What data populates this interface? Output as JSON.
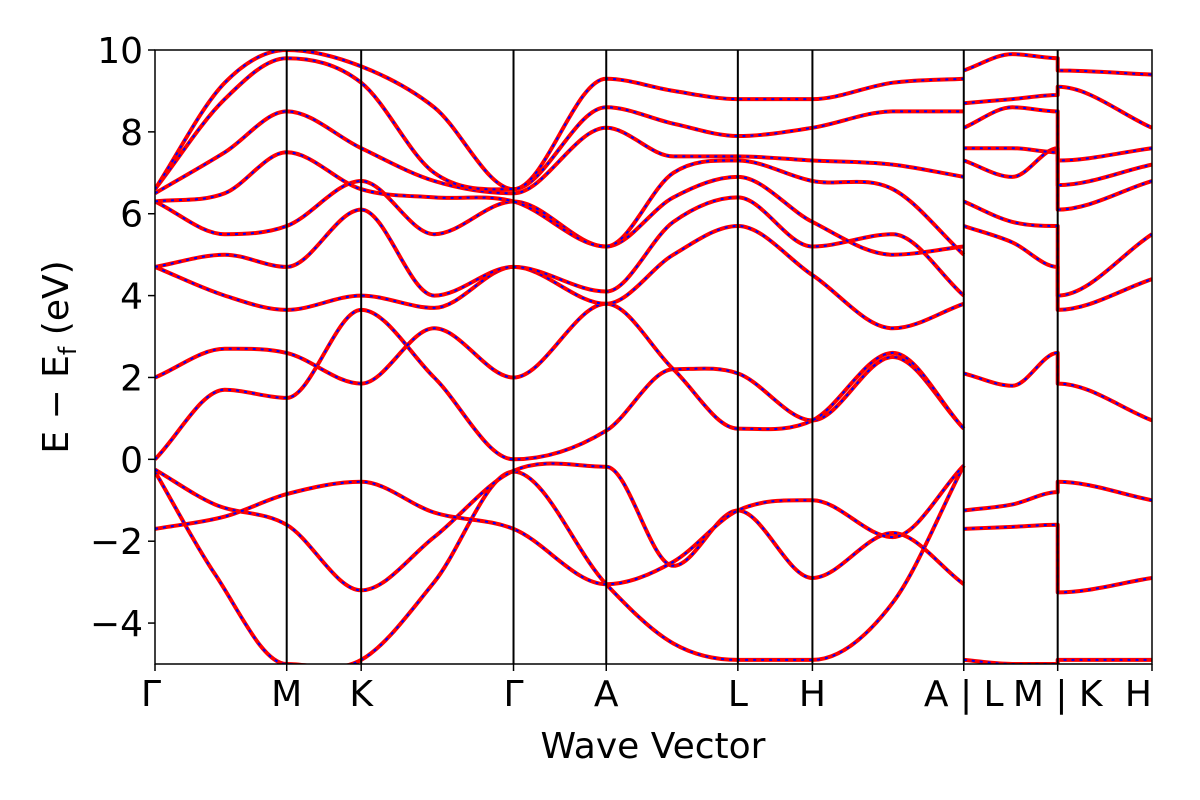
{
  "chart_data": {
    "type": "line",
    "title": "",
    "xlabel": "Wave Vector",
    "ylabel": {
      "main": "E − E",
      "sub": "f",
      "unit": " (eV)"
    },
    "ylim": [
      -5,
      10
    ],
    "yticks": [
      -4,
      -2,
      0,
      2,
      4,
      6,
      8,
      10
    ],
    "ytick_labels": [
      "−4",
      "−2",
      "0",
      "2",
      "4",
      "6",
      "8",
      "10"
    ],
    "x_range": [
      0,
      1
    ],
    "kpath_labels": [
      "Γ",
      "M",
      "K",
      "Γ",
      "A",
      "L",
      "H",
      "A | L",
      "M | K",
      "H"
    ],
    "kpath_positions": [
      0.0,
      0.1321,
      0.2068,
      0.3596,
      0.4526,
      0.5846,
      0.6594,
      0.8112,
      0.9054,
      1.0
    ],
    "grid": false,
    "legend": "none",
    "colors": {
      "line_outer": "#ff0000",
      "line_inner": "#0000ff",
      "axes": "#000000"
    },
    "bands": [
      {
        "name": "band-1",
        "points": [
          [
            0,
            -0.3
          ],
          [
            0.06,
            -2.8
          ],
          [
            0.1321,
            -5.0
          ],
          [
            0.2068,
            -4.9
          ],
          [
            0.28,
            -3.0
          ],
          [
            0.3596,
            -0.3
          ],
          [
            0.4526,
            -3.05
          ],
          [
            0.52,
            -4.5
          ],
          [
            0.5846,
            -4.9
          ],
          [
            0.6594,
            -4.9
          ],
          [
            0.74,
            -3.5
          ],
          [
            0.8112,
            -0.15
          ]
        ]
      },
      {
        "name": "band-2",
        "points": [
          [
            0,
            -0.25
          ],
          [
            0.06,
            -1.1
          ],
          [
            0.1321,
            -1.6
          ],
          [
            0.2068,
            -3.2
          ],
          [
            0.28,
            -1.9
          ],
          [
            0.3596,
            -0.28
          ],
          [
            0.4526,
            -0.18
          ],
          [
            0.52,
            -2.6
          ],
          [
            0.5846,
            -1.25
          ],
          [
            0.6594,
            -2.9
          ],
          [
            0.74,
            -1.8
          ],
          [
            0.8112,
            -3.05
          ]
        ]
      },
      {
        "name": "band-3",
        "points": [
          [
            0,
            -1.7
          ],
          [
            0.07,
            -1.4
          ],
          [
            0.1321,
            -0.85
          ],
          [
            0.2068,
            -0.55
          ],
          [
            0.28,
            -1.3
          ],
          [
            0.3596,
            -1.7
          ],
          [
            0.4526,
            -3.05
          ],
          [
            0.52,
            -2.5
          ],
          [
            0.5846,
            -1.25
          ],
          [
            0.6594,
            -1.0
          ],
          [
            0.74,
            -1.9
          ],
          [
            0.8112,
            -0.15
          ]
        ]
      },
      {
        "name": "band-4",
        "points": [
          [
            0,
            0.0
          ],
          [
            0.07,
            1.7
          ],
          [
            0.1321,
            1.5
          ],
          [
            0.2068,
            3.65
          ],
          [
            0.28,
            2.0
          ],
          [
            0.3596,
            0.0
          ],
          [
            0.4526,
            0.7
          ],
          [
            0.52,
            2.2
          ],
          [
            0.5846,
            2.1
          ],
          [
            0.6594,
            0.95
          ],
          [
            0.74,
            2.5
          ],
          [
            0.8112,
            0.75
          ]
        ]
      },
      {
        "name": "band-5",
        "points": [
          [
            0,
            2.0
          ],
          [
            0.07,
            2.7
          ],
          [
            0.1321,
            2.6
          ],
          [
            0.2068,
            1.85
          ],
          [
            0.28,
            3.2
          ],
          [
            0.3596,
            2.0
          ],
          [
            0.4526,
            3.8
          ],
          [
            0.52,
            2.2
          ],
          [
            0.5846,
            0.75
          ],
          [
            0.6594,
            0.95
          ],
          [
            0.74,
            2.6
          ],
          [
            0.8112,
            0.75
          ]
        ]
      },
      {
        "name": "band-6",
        "points": [
          [
            0,
            4.7
          ],
          [
            0.07,
            4.0
          ],
          [
            0.1321,
            3.65
          ],
          [
            0.2068,
            4.0
          ],
          [
            0.28,
            3.7
          ],
          [
            0.3596,
            4.7
          ],
          [
            0.4526,
            3.8
          ],
          [
            0.52,
            5.0
          ],
          [
            0.5846,
            5.7
          ],
          [
            0.6594,
            4.5
          ],
          [
            0.74,
            3.2
          ],
          [
            0.8112,
            3.8
          ]
        ]
      },
      {
        "name": "band-7",
        "points": [
          [
            0,
            4.7
          ],
          [
            0.07,
            5.0
          ],
          [
            0.1321,
            4.7
          ],
          [
            0.2068,
            6.1
          ],
          [
            0.28,
            4.0
          ],
          [
            0.3596,
            4.7
          ],
          [
            0.4526,
            4.1
          ],
          [
            0.52,
            5.8
          ],
          [
            0.5846,
            6.4
          ],
          [
            0.6594,
            5.2
          ],
          [
            0.74,
            5.5
          ],
          [
            0.8112,
            4.0
          ]
        ]
      },
      {
        "name": "band-8",
        "points": [
          [
            0,
            6.3
          ],
          [
            0.07,
            5.5
          ],
          [
            0.1321,
            5.7
          ],
          [
            0.2068,
            6.8
          ],
          [
            0.28,
            5.5
          ],
          [
            0.3596,
            6.3
          ],
          [
            0.4526,
            5.2
          ],
          [
            0.52,
            6.4
          ],
          [
            0.5846,
            6.9
          ],
          [
            0.6594,
            5.8
          ],
          [
            0.74,
            5.0
          ],
          [
            0.8112,
            5.2
          ]
        ]
      },
      {
        "name": "band-9",
        "points": [
          [
            0,
            6.3
          ],
          [
            0.07,
            6.5
          ],
          [
            0.1321,
            7.5
          ],
          [
            0.2068,
            6.6
          ],
          [
            0.28,
            6.4
          ],
          [
            0.3596,
            6.3
          ],
          [
            0.4526,
            5.2
          ],
          [
            0.52,
            7.0
          ],
          [
            0.5846,
            7.3
          ],
          [
            0.6594,
            6.8
          ],
          [
            0.74,
            6.6
          ],
          [
            0.8112,
            5.0
          ]
        ]
      },
      {
        "name": "band-10",
        "points": [
          [
            0,
            6.5
          ],
          [
            0.07,
            7.5
          ],
          [
            0.1321,
            8.5
          ],
          [
            0.2068,
            7.6
          ],
          [
            0.28,
            6.8
          ],
          [
            0.3596,
            6.5
          ],
          [
            0.4526,
            8.1
          ],
          [
            0.52,
            7.4
          ],
          [
            0.5846,
            7.4
          ],
          [
            0.6594,
            7.3
          ],
          [
            0.74,
            7.2
          ],
          [
            0.8112,
            6.9
          ]
        ]
      },
      {
        "name": "band-11",
        "points": [
          [
            0,
            6.6
          ],
          [
            0.07,
            8.8
          ],
          [
            0.1321,
            9.8
          ],
          [
            0.2068,
            9.2
          ],
          [
            0.28,
            7.0
          ],
          [
            0.3596,
            6.6
          ],
          [
            0.4526,
            8.6
          ],
          [
            0.52,
            8.2
          ],
          [
            0.5846,
            7.9
          ],
          [
            0.6594,
            8.1
          ],
          [
            0.74,
            8.5
          ],
          [
            0.8112,
            8.5
          ]
        ]
      },
      {
        "name": "band-12",
        "points": [
          [
            0,
            6.6
          ],
          [
            0.07,
            9.2
          ],
          [
            0.1321,
            10.0
          ],
          [
            0.2068,
            9.6
          ],
          [
            0.28,
            8.6
          ],
          [
            0.3596,
            6.6
          ],
          [
            0.4526,
            9.3
          ],
          [
            0.52,
            9.0
          ],
          [
            0.5846,
            8.8
          ],
          [
            0.6594,
            8.8
          ],
          [
            0.74,
            9.2
          ],
          [
            0.8112,
            9.3
          ]
        ]
      },
      {
        "name": "band-13",
        "points": [
          [
            0.8112,
            -4.9
          ],
          [
            0.86,
            -5.0
          ],
          [
            0.9054,
            -5.0
          ],
          [
            0.9054,
            -4.9
          ],
          [
            1.0,
            -4.9
          ]
        ]
      },
      {
        "name": "band-14",
        "points": [
          [
            0.8112,
            -1.7
          ],
          [
            0.86,
            -1.65
          ],
          [
            0.9054,
            -1.6
          ],
          [
            0.9054,
            -3.25
          ],
          [
            1.0,
            -2.9
          ]
        ]
      },
      {
        "name": "band-15",
        "points": [
          [
            0.8112,
            -1.25
          ],
          [
            0.86,
            -1.1
          ],
          [
            0.9054,
            -0.8
          ],
          [
            0.9054,
            -0.55
          ],
          [
            1.0,
            -1.0
          ]
        ]
      },
      {
        "name": "band-16",
        "points": [
          [
            0.8112,
            2.1
          ],
          [
            0.86,
            1.8
          ],
          [
            0.9054,
            2.6
          ],
          [
            0.9054,
            1.85
          ],
          [
            1.0,
            0.95
          ]
        ]
      },
      {
        "name": "band-17",
        "points": [
          [
            0.8112,
            5.7
          ],
          [
            0.86,
            5.3
          ],
          [
            0.9054,
            4.7
          ],
          [
            0.9054,
            3.65
          ],
          [
            1.0,
            4.4
          ]
        ]
      },
      {
        "name": "band-18",
        "points": [
          [
            0.8112,
            6.3
          ],
          [
            0.86,
            5.8
          ],
          [
            0.9054,
            5.7
          ],
          [
            0.9054,
            4.0
          ],
          [
            1.0,
            5.5
          ]
        ]
      },
      {
        "name": "band-19",
        "points": [
          [
            0.8112,
            7.3
          ],
          [
            0.86,
            6.9
          ],
          [
            0.9054,
            7.6
          ],
          [
            0.9054,
            6.1
          ],
          [
            1.0,
            6.8
          ]
        ]
      },
      {
        "name": "band-20",
        "points": [
          [
            0.8112,
            7.6
          ],
          [
            0.86,
            7.6
          ],
          [
            0.9054,
            7.5
          ],
          [
            0.9054,
            6.7
          ],
          [
            1.0,
            7.2
          ]
        ]
      },
      {
        "name": "band-21",
        "points": [
          [
            0.8112,
            8.1
          ],
          [
            0.86,
            8.6
          ],
          [
            0.9054,
            8.5
          ],
          [
            0.9054,
            7.3
          ],
          [
            1.0,
            7.6
          ]
        ]
      },
      {
        "name": "band-22",
        "points": [
          [
            0.8112,
            8.7
          ],
          [
            0.86,
            8.8
          ],
          [
            0.9054,
            8.9
          ],
          [
            0.9054,
            9.1
          ],
          [
            1.0,
            8.1
          ]
        ]
      },
      {
        "name": "band-23",
        "points": [
          [
            0.8112,
            9.5
          ],
          [
            0.86,
            9.9
          ],
          [
            0.9054,
            9.8
          ],
          [
            0.9054,
            9.5
          ],
          [
            1.0,
            9.4
          ]
        ]
      }
    ]
  }
}
